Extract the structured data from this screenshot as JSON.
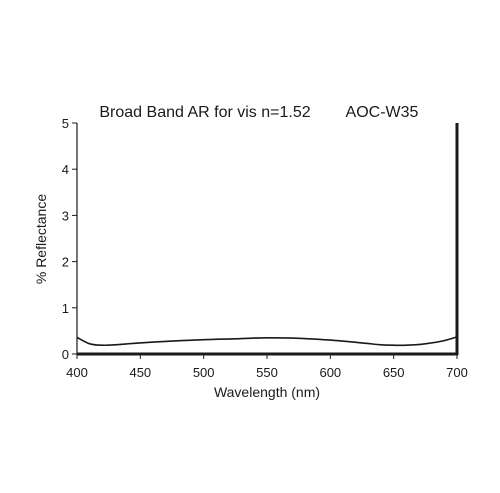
{
  "chart_data": {
    "type": "line",
    "title": "Broad Band AR for vis n=1.52",
    "subtitle": "AOC-W35",
    "xlabel": "Wavelength (nm)",
    "ylabel": "% Reflectance",
    "xlim": [
      400,
      700
    ],
    "ylim": [
      0,
      5
    ],
    "x_ticks": [
      "400",
      "450",
      "500",
      "550",
      "600",
      "650",
      "700"
    ],
    "y_ticks": [
      "0",
      "1",
      "2",
      "3",
      "4",
      "5"
    ],
    "grid": false,
    "series": [
      {
        "x": [
          400,
          410,
          420,
          430,
          450,
          475,
          500,
          525,
          550,
          575,
          600,
          625,
          640,
          650,
          660,
          675,
          690,
          700
        ],
        "y": [
          0.36,
          0.22,
          0.19,
          0.2,
          0.24,
          0.28,
          0.31,
          0.33,
          0.35,
          0.34,
          0.3,
          0.24,
          0.2,
          0.19,
          0.19,
          0.22,
          0.29,
          0.37
        ]
      }
    ]
  }
}
